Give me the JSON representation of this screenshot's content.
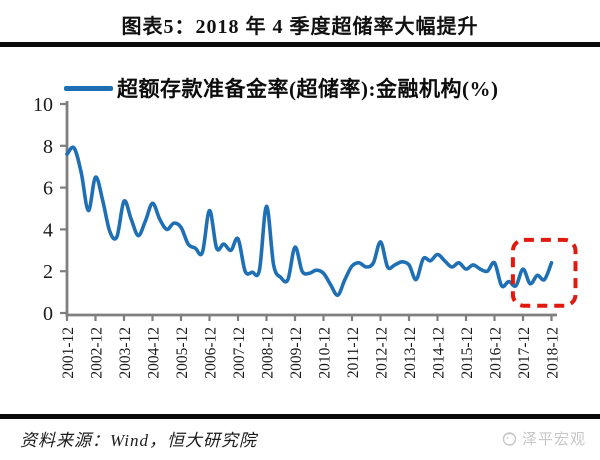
{
  "title": "图表5：2018 年 4 季度超储率大幅提升",
  "legend": {
    "label": "超额存款准备金率(超储率):金融机构(%)"
  },
  "source": {
    "text": "资料来源：Wind，恒大研究院"
  },
  "watermark": {
    "text": "泽平宏观"
  },
  "colors": {
    "line": "#1F6FB5",
    "axis": "#7F7F7F",
    "tick_label": "#1a1a1a",
    "highlight": "#E2190F",
    "divider": "#0A0A0A",
    "watermark": "#C7C7C7"
  },
  "chart_data": {
    "type": "line",
    "title": "图表5：2018 年 4 季度超储率大幅提升",
    "xlabel": "",
    "ylabel": "",
    "ylim": [
      0,
      10
    ],
    "yticks": [
      0,
      2,
      4,
      6,
      8,
      10
    ],
    "grid": false,
    "legend_position": "top",
    "x_tick_labels": [
      "2001-12",
      "2002-12",
      "2003-12",
      "2004-12",
      "2005-12",
      "2006-12",
      "2007-12",
      "2008-12",
      "2009-12",
      "2010-12",
      "2011-12",
      "2012-12",
      "2013-12",
      "2014-12",
      "2015-12",
      "2016-12",
      "2017-12",
      "2018-12"
    ],
    "series": [
      {
        "name": "超额存款准备金率(超储率):金融机构(%)",
        "color": "#1F6FB5",
        "x": [
          "2001-12",
          "2002-03",
          "2002-06",
          "2002-09",
          "2002-12",
          "2003-03",
          "2003-06",
          "2003-09",
          "2003-12",
          "2004-03",
          "2004-06",
          "2004-09",
          "2004-12",
          "2005-03",
          "2005-06",
          "2005-09",
          "2005-12",
          "2006-03",
          "2006-06",
          "2006-09",
          "2006-12",
          "2007-03",
          "2007-06",
          "2007-09",
          "2007-12",
          "2008-03",
          "2008-06",
          "2008-09",
          "2008-12",
          "2009-03",
          "2009-06",
          "2009-09",
          "2009-12",
          "2010-03",
          "2010-06",
          "2010-09",
          "2010-12",
          "2011-03",
          "2011-06",
          "2011-09",
          "2011-12",
          "2012-03",
          "2012-06",
          "2012-09",
          "2012-12",
          "2013-03",
          "2013-06",
          "2013-09",
          "2013-12",
          "2014-03",
          "2014-06",
          "2014-09",
          "2014-12",
          "2015-03",
          "2015-06",
          "2015-09",
          "2015-12",
          "2016-03",
          "2016-06",
          "2016-09",
          "2016-12",
          "2017-03",
          "2017-06",
          "2017-09",
          "2017-12",
          "2018-03",
          "2018-06",
          "2018-09",
          "2018-12"
        ],
        "values": [
          7.6,
          7.9,
          6.7,
          4.9,
          6.5,
          5.4,
          3.9,
          3.65,
          5.35,
          4.5,
          3.7,
          4.4,
          5.25,
          4.5,
          4.0,
          4.3,
          4.1,
          3.3,
          3.1,
          2.9,
          4.9,
          3.1,
          3.3,
          3.0,
          3.55,
          2.0,
          1.95,
          2.05,
          5.1,
          2.3,
          1.7,
          1.6,
          3.15,
          2.0,
          1.9,
          2.05,
          1.9,
          1.35,
          0.85,
          1.6,
          2.25,
          2.4,
          2.2,
          2.4,
          3.4,
          2.2,
          2.3,
          2.45,
          2.3,
          1.6,
          2.6,
          2.5,
          2.8,
          2.5,
          2.2,
          2.4,
          2.1,
          2.3,
          2.1,
          2.0,
          2.4,
          1.3,
          1.5,
          1.3,
          2.1,
          1.4,
          1.8,
          1.6,
          2.4
        ]
      }
    ],
    "highlight_region": {
      "shape": "dashed-rounded-rect",
      "color": "#E2190F",
      "date_start": "2017-09",
      "date_end": "2018-12",
      "value_min": 0.35,
      "value_max": 3.5
    }
  }
}
